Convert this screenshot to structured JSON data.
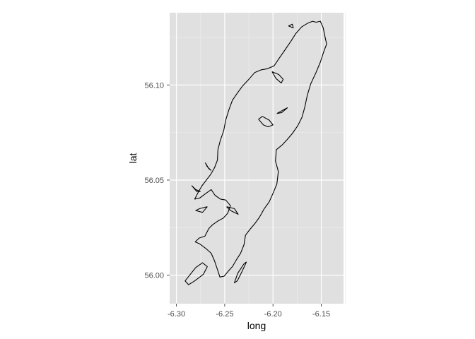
{
  "chart_data": {
    "type": "map-outline",
    "title": "",
    "xlabel": "long",
    "ylabel": "lat",
    "xlim": [
      -6.307,
      -6.127
    ],
    "ylim": [
      55.985,
      56.138
    ],
    "x_ticks": [
      -6.3,
      -6.25,
      -6.2,
      -6.15
    ],
    "x_tick_labels": [
      "-6.30",
      "-6.25",
      "-6.20",
      "-6.15"
    ],
    "y_ticks": [
      56.0,
      56.05,
      56.1
    ],
    "y_tick_labels": [
      "56.00",
      "56.05",
      "56.10"
    ],
    "grid": true,
    "colors": {
      "panel": "#e0e0e0",
      "grid_major": "#ffffff",
      "grid_minor": "#ebebeb",
      "line": "#000000"
    },
    "series": [
      {
        "points": [
          [
            -6.1555,
            56.133
          ],
          [
            -6.151,
            56.1335
          ],
          [
            -6.148,
            56.13
          ],
          [
            -6.146,
            56.125
          ],
          [
            -6.1445,
            56.1215
          ],
          [
            -6.1475,
            56.1175
          ],
          [
            -6.151,
            56.112
          ],
          [
            -6.1555,
            56.1065
          ],
          [
            -6.161,
            56.1005
          ],
          [
            -6.1645,
            56.0945
          ],
          [
            -6.167,
            56.0885
          ],
          [
            -6.17,
            56.083
          ],
          [
            -6.1745,
            56.0785
          ],
          [
            -6.18,
            56.0745
          ],
          [
            -6.185,
            56.0715
          ],
          [
            -6.1905,
            56.0685
          ],
          [
            -6.1965,
            56.066
          ],
          [
            -6.1975,
            56.06
          ],
          [
            -6.1945,
            56.0545
          ],
          [
            -6.196,
            56.048
          ],
          [
            -6.2,
            56.043
          ],
          [
            -6.204,
            56.0385
          ],
          [
            -6.209,
            56.035
          ],
          [
            -6.214,
            56.0305
          ],
          [
            -6.219,
            56.027
          ],
          [
            -6.224,
            56.024
          ],
          [
            -6.2285,
            56.021
          ],
          [
            -6.23,
            56.016
          ],
          [
            -6.2335,
            56.0115
          ],
          [
            -6.238,
            56.008
          ],
          [
            -6.242,
            56.0045
          ],
          [
            -6.2465,
            56.002
          ],
          [
            -6.2505,
            55.9995
          ],
          [
            -6.255,
            55.999
          ],
          [
            -6.2575,
            56.003
          ],
          [
            -6.2605,
            56.0075
          ],
          [
            -6.264,
            56.0115
          ],
          [
            -6.2695,
            56.014
          ],
          [
            -6.276,
            56.0165
          ],
          [
            -6.2805,
            56.0175
          ],
          [
            -6.2765,
            56.0195
          ],
          [
            -6.2705,
            56.0205
          ],
          [
            -6.2665,
            56.0245
          ],
          [
            -6.2625,
            56.0265
          ],
          [
            -6.257,
            56.0285
          ],
          [
            -6.2515,
            56.03
          ],
          [
            -6.247,
            56.0325
          ],
          [
            -6.244,
            56.0365
          ],
          [
            -6.249,
            56.0395
          ],
          [
            -6.2545,
            56.04
          ],
          [
            -6.26,
            56.042
          ],
          [
            -6.264,
            56.045
          ],
          [
            -6.2695,
            56.043
          ],
          [
            -6.276,
            56.0405
          ],
          [
            -6.281,
            56.04
          ],
          [
            -6.277,
            56.044
          ],
          [
            -6.2735,
            56.047
          ],
          [
            -6.269,
            56.05
          ],
          [
            -6.2645,
            56.053
          ],
          [
            -6.2605,
            56.0565
          ],
          [
            -6.2575,
            56.0605
          ],
          [
            -6.257,
            56.066
          ],
          [
            -6.2545,
            56.071
          ],
          [
            -6.251,
            56.076
          ],
          [
            -6.249,
            56.0815
          ],
          [
            -6.246,
            56.0865
          ],
          [
            -6.242,
            56.092
          ],
          [
            -6.2365,
            56.096
          ],
          [
            -6.2315,
            56.0995
          ],
          [
            -6.225,
            56.103
          ],
          [
            -6.219,
            56.1065
          ],
          [
            -6.212,
            56.108
          ],
          [
            -6.206,
            56.1085
          ],
          [
            -6.199,
            56.11
          ],
          [
            -6.193,
            56.1145
          ],
          [
            -6.1875,
            56.1185
          ],
          [
            -6.1815,
            56.123
          ],
          [
            -6.1765,
            56.127
          ],
          [
            -6.1705,
            56.1305
          ],
          [
            -6.164,
            56.1325
          ],
          [
            -6.159,
            56.1335
          ],
          [
            -6.1555,
            56.133
          ]
        ]
      },
      {
        "points": [
          [
            -6.201,
            56.107
          ],
          [
            -6.194,
            56.1055
          ],
          [
            -6.1895,
            56.103
          ],
          [
            -6.1915,
            56.101
          ],
          [
            -6.197,
            56.1035
          ],
          [
            -6.201,
            56.107
          ]
        ]
      },
      {
        "points": [
          [
            -6.28,
            56.004
          ],
          [
            -6.273,
            56.0065
          ],
          [
            -6.268,
            56.0045
          ],
          [
            -6.272,
            56.0005
          ],
          [
            -6.281,
            55.997
          ],
          [
            -6.2875,
            55.995
          ],
          [
            -6.291,
            55.997
          ],
          [
            -6.28,
            56.004
          ]
        ]
      },
      {
        "points": [
          [
            -6.2275,
            56.007
          ],
          [
            -6.232,
            56.002
          ],
          [
            -6.237,
            55.997
          ],
          [
            -6.24,
            55.996
          ],
          [
            -6.2365,
            56.001
          ],
          [
            -6.23,
            56.006
          ],
          [
            -6.2275,
            56.007
          ]
        ]
      },
      {
        "points": [
          [
            -6.215,
            56.082
          ],
          [
            -6.21,
            56.079
          ],
          [
            -6.205,
            56.078
          ],
          [
            -6.2,
            56.079
          ],
          [
            -6.204,
            56.0815
          ],
          [
            -6.211,
            56.0835
          ],
          [
            -6.215,
            56.082
          ]
        ]
      },
      {
        "points": [
          [
            -6.196,
            56.085
          ],
          [
            -6.189,
            56.087
          ],
          [
            -6.185,
            56.088
          ],
          [
            -6.191,
            56.0855
          ],
          [
            -6.196,
            56.085
          ]
        ]
      },
      {
        "points": [
          [
            -6.268,
            56.036
          ],
          [
            -6.276,
            56.035
          ],
          [
            -6.28,
            56.034
          ],
          [
            -6.273,
            56.033
          ],
          [
            -6.268,
            56.036
          ]
        ]
      },
      {
        "points": [
          [
            -6.248,
            56.036
          ],
          [
            -6.24,
            56.035
          ],
          [
            -6.236,
            56.032
          ],
          [
            -6.244,
            56.034
          ],
          [
            -6.248,
            56.036
          ]
        ]
      },
      {
        "points": [
          [
            -6.264,
            56.055
          ],
          [
            -6.268,
            56.057
          ],
          [
            -6.27,
            56.059
          ],
          [
            -6.2665,
            56.056
          ],
          [
            -6.264,
            56.055
          ]
        ]
      },
      {
        "points": [
          [
            -6.184,
            56.131
          ],
          [
            -6.18,
            56.132
          ],
          [
            -6.179,
            56.13
          ],
          [
            -6.184,
            56.131
          ]
        ]
      },
      {
        "points": [
          [
            -6.275,
            56.044
          ],
          [
            -6.28,
            56.045
          ],
          [
            -6.284,
            56.047
          ],
          [
            -6.279,
            56.044
          ],
          [
            -6.275,
            56.044
          ]
        ]
      }
    ]
  }
}
